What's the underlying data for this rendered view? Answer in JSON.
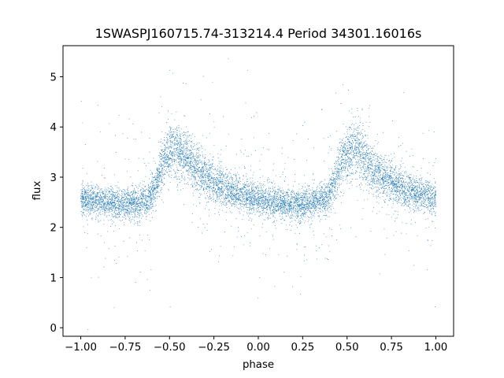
{
  "chart_data": {
    "type": "scatter",
    "title": "1SWASPJ160715.74-313214.4 Period 34301.16016s",
    "xlabel": "phase",
    "ylabel": "flux",
    "xlim": [
      -1.1,
      1.1
    ],
    "ylim": [
      -0.17,
      5.62
    ],
    "xticks": [
      -1.0,
      -0.75,
      -0.5,
      -0.25,
      0.0,
      0.25,
      0.5,
      0.75,
      1.0
    ],
    "xtick_labels": [
      "−1.00",
      "−0.75",
      "−0.50",
      "−0.25",
      "0.00",
      "0.25",
      "0.50",
      "0.75",
      "1.00"
    ],
    "yticks": [
      0,
      1,
      2,
      3,
      4,
      5
    ],
    "ytick_labels": [
      "0",
      "1",
      "2",
      "3",
      "4",
      "5"
    ],
    "grid": false,
    "marker_color": "#1f77b4",
    "series": [
      {
        "phase": [
          -1.0,
          -0.9,
          -0.8,
          -0.7,
          -0.62,
          -0.57,
          -0.52,
          -0.47,
          -0.42,
          -0.35,
          -0.25,
          -0.15,
          -0.05,
          0.05,
          0.15,
          0.25,
          0.3,
          0.38,
          0.43,
          0.48,
          0.53,
          0.58,
          0.65,
          0.75,
          0.85,
          0.95,
          1.0
        ],
        "flux": [
          2.55,
          2.52,
          2.48,
          2.48,
          2.55,
          2.9,
          3.45,
          3.55,
          3.45,
          3.15,
          2.88,
          2.7,
          2.6,
          2.52,
          2.47,
          2.46,
          2.5,
          2.55,
          2.9,
          3.4,
          3.55,
          3.45,
          3.15,
          2.9,
          2.72,
          2.62,
          2.55
        ]
      }
    ]
  }
}
